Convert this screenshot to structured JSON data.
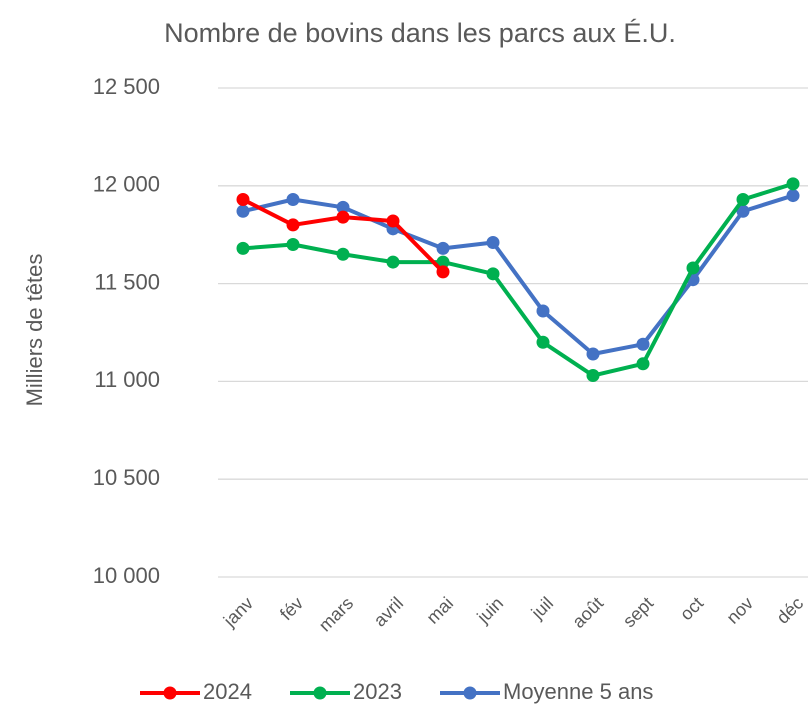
{
  "chart_data": {
    "type": "line",
    "title": "Nombre de bovins dans les parcs aux É.U.",
    "y_label": "Milliers de têtes",
    "categories": [
      "janv",
      "fév",
      "mars",
      "avril",
      "mai",
      "juin",
      "juil",
      "août",
      "sept",
      "oct",
      "nov",
      "déc"
    ],
    "series": [
      {
        "name": "2024",
        "color": "#ff0000",
        "values": [
          11930,
          11800,
          11840,
          11820,
          11560,
          null,
          null,
          null,
          null,
          null,
          null,
          null
        ]
      },
      {
        "name": "2023",
        "color": "#00b050",
        "values": [
          11680,
          11700,
          11650,
          11610,
          11610,
          11550,
          11200,
          11030,
          11090,
          11580,
          11930,
          12010
        ]
      },
      {
        "name": "Moyenne 5 ans",
        "color": "#4472c4",
        "values": [
          11870,
          11930,
          11890,
          11780,
          11680,
          11710,
          11360,
          11140,
          11190,
          11520,
          11870,
          11950
        ]
      }
    ],
    "ylim": [
      10000,
      12500
    ],
    "yticks": [
      {
        "value": 10000,
        "label": "10 000"
      },
      {
        "value": 10500,
        "label": "10 500"
      },
      {
        "value": 11000,
        "label": "11 000"
      },
      {
        "value": 11500,
        "label": "11 500"
      },
      {
        "value": 12000,
        "label": "12 000"
      },
      {
        "value": 12500,
        "label": "12 500"
      }
    ],
    "grid": true,
    "legend": "bottom"
  }
}
